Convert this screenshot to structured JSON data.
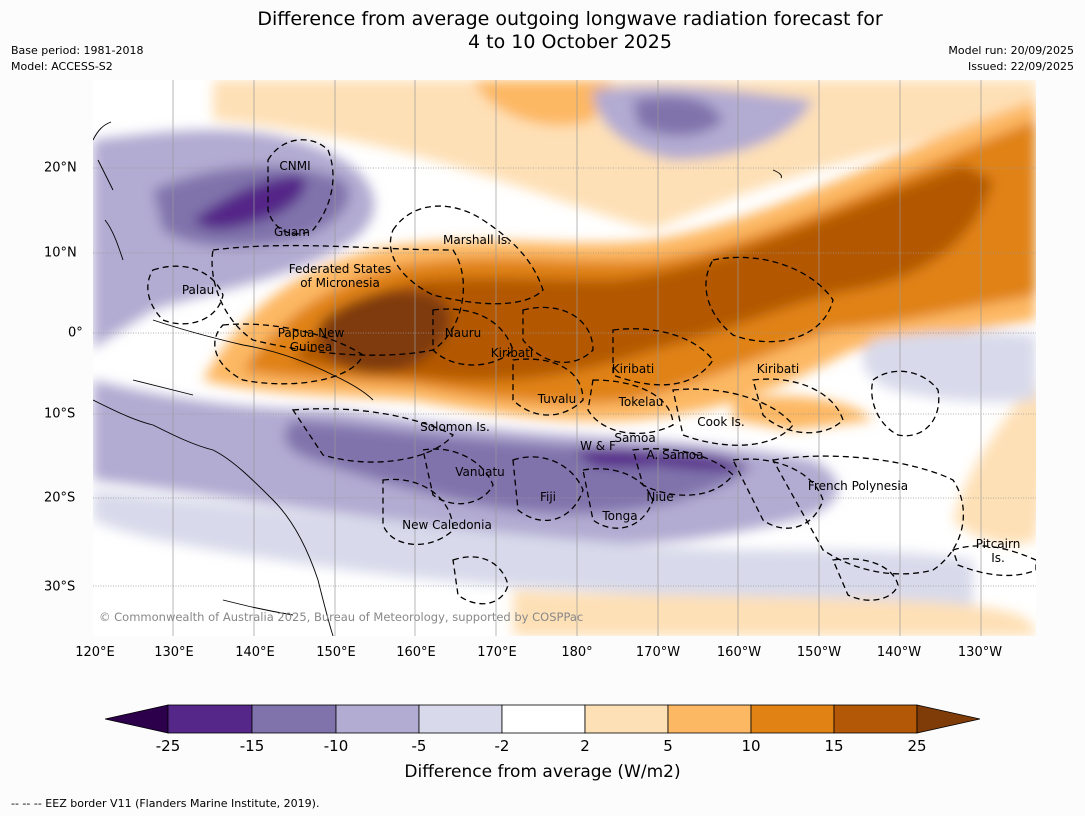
{
  "title": {
    "line1": "Difference from average outgoing longwave radiation forecast for",
    "line2": "4 to 10 October 2025"
  },
  "meta": {
    "base_period": "Base period: 1981-2018",
    "model": "Model: ACCESS-S2",
    "model_run": "Model run: 20/09/2025",
    "issued": "Issued: 22/09/2025"
  },
  "axes": {
    "lon_ticks": [
      "120°E",
      "130°E",
      "140°E",
      "150°E",
      "160°E",
      "170°E",
      "180°",
      "170°W",
      "160°W",
      "150°W",
      "140°W",
      "130°W"
    ],
    "lat_ticks": [
      "20°N",
      "10°N",
      "0°",
      "10°S",
      "20°S",
      "30°S"
    ]
  },
  "places": [
    {
      "id": "cnmi",
      "label": "CNMI"
    },
    {
      "id": "guam",
      "label": "Guam"
    },
    {
      "id": "marshall",
      "label": "Marshall Is."
    },
    {
      "id": "fsm",
      "label": "Federated States\nof Micronesia"
    },
    {
      "id": "palau",
      "label": "Palau"
    },
    {
      "id": "png",
      "label": "Papua New\nGuinea"
    },
    {
      "id": "nauru",
      "label": "Nauru"
    },
    {
      "id": "kiribati1",
      "label": "Kiribati"
    },
    {
      "id": "kiribati2",
      "label": "Kiribati"
    },
    {
      "id": "kiribati3",
      "label": "Kiribati"
    },
    {
      "id": "tuvalu",
      "label": "Tuvalu"
    },
    {
      "id": "tokelau",
      "label": "Tokelau"
    },
    {
      "id": "cook",
      "label": "Cook Is."
    },
    {
      "id": "solomon",
      "label": "Solomon Is."
    },
    {
      "id": "wf",
      "label": "W & F"
    },
    {
      "id": "samoa",
      "label": "Samoa"
    },
    {
      "id": "asamoa",
      "label": "A. Samoa"
    },
    {
      "id": "vanuatu",
      "label": "Vanuatu"
    },
    {
      "id": "fiji",
      "label": "Fiji"
    },
    {
      "id": "niue",
      "label": "Niue"
    },
    {
      "id": "tonga",
      "label": "Tonga"
    },
    {
      "id": "frpoly",
      "label": "French Polynesia"
    },
    {
      "id": "newcal",
      "label": "New Caledonia"
    },
    {
      "id": "pitcairn",
      "label": "Pitcairn\nIs."
    }
  ],
  "copyright": "© Commonwealth of Australia 2025, Bureau of Meteorology, supported by COSPPac",
  "colorbar": {
    "ticks": [
      "-25",
      "-15",
      "-10",
      "-5",
      "-2",
      "2",
      "5",
      "10",
      "15",
      "25"
    ],
    "colors": [
      "#2d004b",
      "#542788",
      "#8073ac",
      "#b2abd2",
      "#d8daeb",
      "#ffffff",
      "#fee0b6",
      "#fdb863",
      "#e08214",
      "#b35806",
      "#7f3b08"
    ],
    "label": "Difference from average (W/m2)"
  },
  "footnote": "--  --  -- EEZ border V11 (Flanders Marine Institute, 2019)."
}
